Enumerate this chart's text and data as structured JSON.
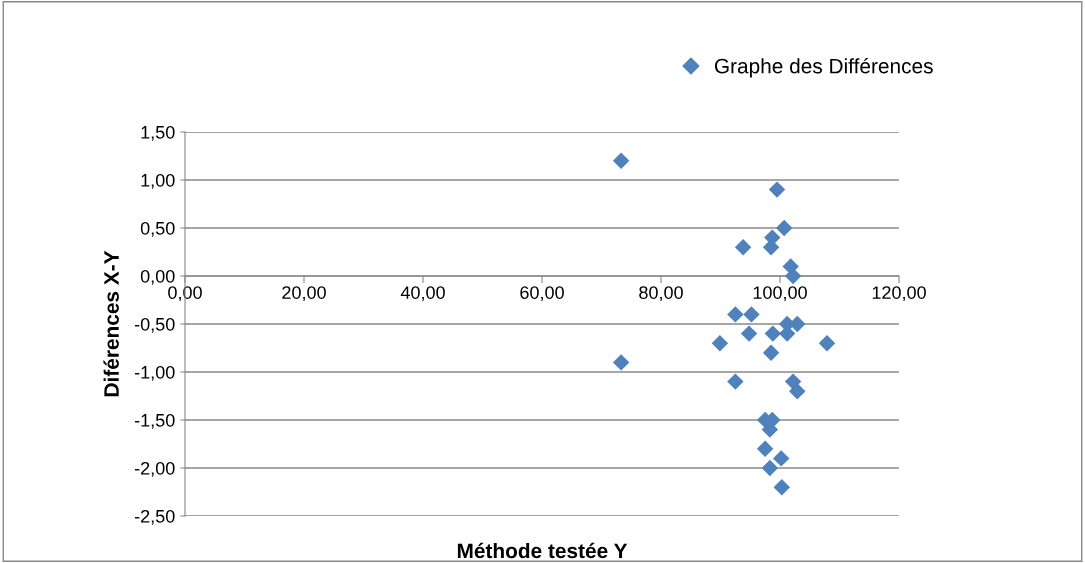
{
  "chart_data": {
    "type": "scatter",
    "xlabel": "Méthode testée Y",
    "ylabel": "Diférences X-Y",
    "xlim": [
      0,
      120
    ],
    "xticks": [
      {
        "value": 0,
        "label": "0,00"
      },
      {
        "value": 20,
        "label": "20,00"
      },
      {
        "value": 40,
        "label": "40,00"
      },
      {
        "value": 60,
        "label": "60,00"
      },
      {
        "value": 80,
        "label": "80,00"
      },
      {
        "value": 100,
        "label": "100,00"
      },
      {
        "value": 120,
        "label": "120,00"
      }
    ],
    "ylim": [
      -2.5,
      1.5
    ],
    "yticks": [
      {
        "value": -2.5,
        "label": "-2,50"
      },
      {
        "value": -2.0,
        "label": "-2,00"
      },
      {
        "value": -1.5,
        "label": "-1,50"
      },
      {
        "value": -1.0,
        "label": "-1,00"
      },
      {
        "value": -0.5,
        "label": "-0,50"
      },
      {
        "value": 0,
        "label": "0,00"
      },
      {
        "value": 0.5,
        "label": "0,50"
      },
      {
        "value": 1.0,
        "label": "1,00"
      },
      {
        "value": 1.5,
        "label": "1,50"
      }
    ],
    "grid": "y",
    "legend": "top right",
    "marker": "diamond",
    "series": [
      {
        "name": "Graphe des Différences",
        "color": "#4f81bd",
        "x": [
          73.3,
          73.3,
          99.5,
          100.7,
          98.7,
          98.5,
          93.8,
          101.8,
          102.2,
          92.5,
          95.2,
          101.2,
          102.9,
          94.8,
          98.8,
          101.2,
          89.9,
          107.9,
          98.5,
          92.5,
          102.2,
          102.9,
          97.5,
          98.7,
          98.3,
          97.5,
          100.2,
          98.3,
          100.3
        ],
        "values": [
          1.2,
          -0.9,
          0.9,
          0.5,
          0.4,
          0.3,
          0.3,
          0.1,
          0.0,
          -0.4,
          -0.4,
          -0.5,
          -0.5,
          -0.6,
          -0.6,
          -0.6,
          -0.7,
          -0.7,
          -0.8,
          -1.1,
          -1.1,
          -1.2,
          -1.5,
          -1.5,
          -1.6,
          -1.8,
          -1.9,
          -2.0,
          -2.2
        ]
      }
    ]
  }
}
